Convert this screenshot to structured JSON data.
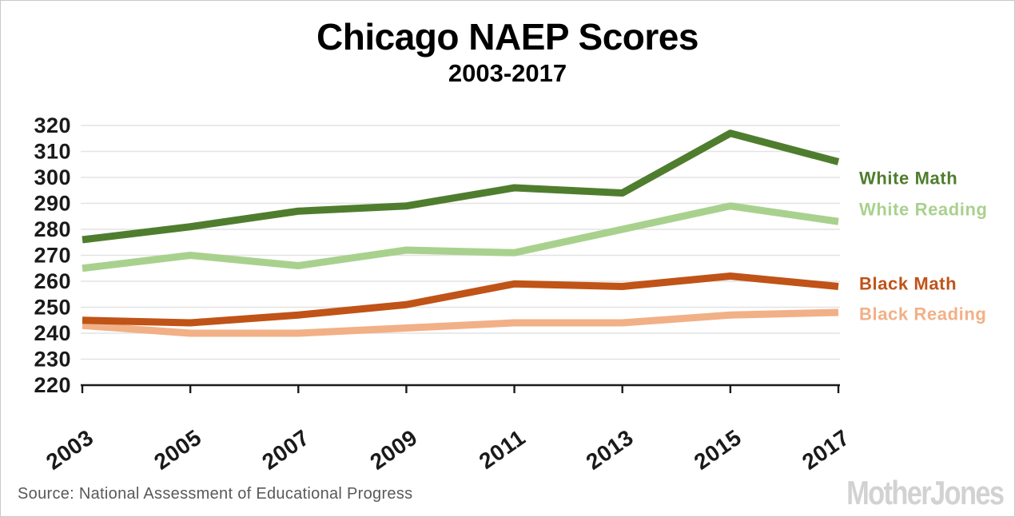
{
  "header": {
    "title": "Chicago NAEP Scores",
    "subtitle": "2003-2017"
  },
  "chart_data": {
    "type": "line",
    "categories": [
      "2003",
      "2005",
      "2007",
      "2009",
      "2011",
      "2013",
      "2015",
      "2017"
    ],
    "series": [
      {
        "name": "White Math",
        "color": "#4f7d2e",
        "values": [
          276,
          281,
          287,
          289,
          296,
          294,
          317,
          306
        ]
      },
      {
        "name": "White Reading",
        "color": "#a9d18e",
        "values": [
          265,
          270,
          266,
          272,
          271,
          280,
          289,
          283
        ]
      },
      {
        "name": "Black Math",
        "color": "#c05317",
        "values": [
          245,
          244,
          247,
          251,
          259,
          258,
          262,
          258
        ]
      },
      {
        "name": "Black Reading",
        "color": "#f2b086",
        "values": [
          243,
          240,
          240,
          242,
          244,
          244,
          247,
          248
        ]
      }
    ],
    "ylim": [
      220,
      320
    ],
    "y_tick_step": 10,
    "grid": true,
    "legend_position": "right-of-plot",
    "x_labels_rotated": true
  },
  "footer": {
    "source": "Source: National Assessment of Educational Progress",
    "logo_text": "MotherJones"
  },
  "colors": {
    "background": "#ffffff",
    "border": "#c9c9c9",
    "grid": "#e3e3e3",
    "axis": "#1a1a1a",
    "tick_label": "#1a1a1a",
    "title": "#000000",
    "source_text": "#595959",
    "logo": "#d2d2d2"
  }
}
